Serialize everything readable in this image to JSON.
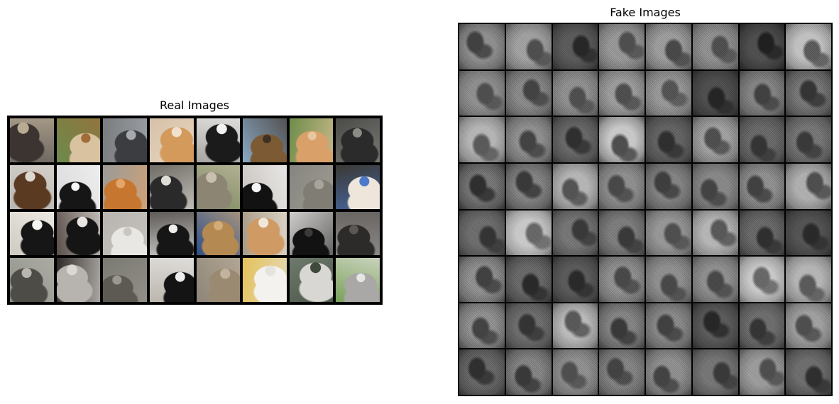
{
  "real_panel": {
    "title": "Real Images",
    "tiles": [
      {
        "bg": "#6f6a63",
        "fg": "#3b3430",
        "accent": "#b9aa93"
      },
      {
        "bg": "#6c8a4c",
        "fg": "#d8c2a0",
        "accent": "#a06c38"
      },
      {
        "bg": "#7a7d80",
        "fg": "#3b3d40",
        "accent": "#a6a9ad"
      },
      {
        "bg": "#d6c0a8",
        "fg": "#d49a5c",
        "accent": "#f0e0cc"
      },
      {
        "bg": "#a8a6a2",
        "fg": "#1b1b1b",
        "accent": "#f2f2f2"
      },
      {
        "bg": "#89a9c5",
        "fg": "#7b5a34",
        "accent": "#3d3024"
      },
      {
        "bg": "#6d8d4a",
        "fg": "#d9a06a",
        "accent": "#e8c69f"
      },
      {
        "bg": "#4a4b47",
        "fg": "#2b2b2b",
        "accent": "#8c8c86"
      },
      {
        "bg": "#b9b7b3",
        "fg": "#5b3a22",
        "accent": "#ded7cf"
      },
      {
        "bg": "#d9d9db",
        "fg": "#161616",
        "accent": "#f6f6f6"
      },
      {
        "bg": "#9a9a98",
        "fg": "#c6762e",
        "accent": "#e3a56a"
      },
      {
        "bg": "#6f6c66",
        "fg": "#2a2a2a",
        "accent": "#e0ddd6"
      },
      {
        "bg": "#7c8a5b",
        "fg": "#8d8574",
        "accent": "#c8bfad"
      },
      {
        "bg": "#c7c2bc",
        "fg": "#121212",
        "accent": "#f5f5f5"
      },
      {
        "bg": "#86857f",
        "fg": "#807e74",
        "accent": "#a7a49a"
      },
      {
        "bg": "#3b3834",
        "fg": "#eee6db",
        "accent": "#4a79c9"
      },
      {
        "bg": "#cfcac2",
        "fg": "#161616",
        "accent": "#f7f5f1"
      },
      {
        "bg": "#5a4e49",
        "fg": "#151515",
        "accent": "#e9e6e2"
      },
      {
        "bg": "#b8b5b1",
        "fg": "#e9e7e4",
        "accent": "#cac6c1"
      },
      {
        "bg": "#5d5a57",
        "fg": "#161616",
        "accent": "#f1efec"
      },
      {
        "bg": "#2e4f8a",
        "fg": "#b58a52",
        "accent": "#d2ac78"
      },
      {
        "bg": "#a89c88",
        "fg": "#d09a64",
        "accent": "#efe7dc"
      },
      {
        "bg": "#cfcdcb",
        "fg": "#121212",
        "accent": "#3a3a3a"
      },
      {
        "bg": "#8c8885",
        "fg": "#2d2b2a",
        "accent": "#5a5755"
      },
      {
        "bg": "#8f9289",
        "fg": "#4e4c46",
        "accent": "#b8b6ae"
      },
      {
        "bg": "#2f2a28",
        "fg": "#b7b3ae",
        "accent": "#dbd8d3"
      },
      {
        "bg": "#7b7a72",
        "fg": "#5c5a52",
        "accent": "#9a978e"
      },
      {
        "bg": "#bcb6ad",
        "fg": "#141414",
        "accent": "#ededed"
      },
      {
        "bg": "#8d8578",
        "fg": "#9b8a72",
        "accent": "#c1b39e"
      },
      {
        "bg": "#e4c15a",
        "fg": "#f4f2ef",
        "accent": "#e6e3de"
      },
      {
        "bg": "#6e7a6c",
        "fg": "#d8d7d4",
        "accent": "#3f4a3d"
      },
      {
        "bg": "#7aa15a",
        "fg": "#a9a8a6",
        "accent": "#e7e6e4"
      }
    ]
  },
  "fake_panel": {
    "title": "Fake Images",
    "tiles": [
      {
        "l": 0.55,
        "d": 0.25
      },
      {
        "l": 0.62,
        "d": 0.3
      },
      {
        "l": 0.35,
        "d": 0.15
      },
      {
        "l": 0.58,
        "d": 0.3
      },
      {
        "l": 0.6,
        "d": 0.28
      },
      {
        "l": 0.55,
        "d": 0.3
      },
      {
        "l": 0.3,
        "d": 0.12
      },
      {
        "l": 0.75,
        "d": 0.35
      },
      {
        "l": 0.55,
        "d": 0.3
      },
      {
        "l": 0.52,
        "d": 0.26
      },
      {
        "l": 0.55,
        "d": 0.3
      },
      {
        "l": 0.6,
        "d": 0.3
      },
      {
        "l": 0.58,
        "d": 0.32
      },
      {
        "l": 0.3,
        "d": 0.14
      },
      {
        "l": 0.5,
        "d": 0.25
      },
      {
        "l": 0.45,
        "d": 0.2
      },
      {
        "l": 0.7,
        "d": 0.35
      },
      {
        "l": 0.55,
        "d": 0.26
      },
      {
        "l": 0.4,
        "d": 0.18
      },
      {
        "l": 0.78,
        "d": 0.3
      },
      {
        "l": 0.38,
        "d": 0.18
      },
      {
        "l": 0.62,
        "d": 0.3
      },
      {
        "l": 0.4,
        "d": 0.2
      },
      {
        "l": 0.45,
        "d": 0.22
      },
      {
        "l": 0.45,
        "d": 0.18
      },
      {
        "l": 0.5,
        "d": 0.22
      },
      {
        "l": 0.7,
        "d": 0.32
      },
      {
        "l": 0.55,
        "d": 0.28
      },
      {
        "l": 0.5,
        "d": 0.24
      },
      {
        "l": 0.52,
        "d": 0.26
      },
      {
        "l": 0.55,
        "d": 0.25
      },
      {
        "l": 0.68,
        "d": 0.3
      },
      {
        "l": 0.42,
        "d": 0.2
      },
      {
        "l": 0.78,
        "d": 0.4
      },
      {
        "l": 0.45,
        "d": 0.22
      },
      {
        "l": 0.48,
        "d": 0.22
      },
      {
        "l": 0.58,
        "d": 0.3
      },
      {
        "l": 0.7,
        "d": 0.34
      },
      {
        "l": 0.4,
        "d": 0.18
      },
      {
        "l": 0.32,
        "d": 0.16
      },
      {
        "l": 0.55,
        "d": 0.25
      },
      {
        "l": 0.4,
        "d": 0.16
      },
      {
        "l": 0.35,
        "d": 0.16
      },
      {
        "l": 0.55,
        "d": 0.28
      },
      {
        "l": 0.55,
        "d": 0.28
      },
      {
        "l": 0.55,
        "d": 0.28
      },
      {
        "l": 0.78,
        "d": 0.4
      },
      {
        "l": 0.7,
        "d": 0.35
      },
      {
        "l": 0.55,
        "d": 0.26
      },
      {
        "l": 0.42,
        "d": 0.2
      },
      {
        "l": 0.72,
        "d": 0.34
      },
      {
        "l": 0.5,
        "d": 0.22
      },
      {
        "l": 0.52,
        "d": 0.25
      },
      {
        "l": 0.35,
        "d": 0.15
      },
      {
        "l": 0.42,
        "d": 0.2
      },
      {
        "l": 0.62,
        "d": 0.3
      },
      {
        "l": 0.4,
        "d": 0.18
      },
      {
        "l": 0.5,
        "d": 0.22
      },
      {
        "l": 0.55,
        "d": 0.3
      },
      {
        "l": 0.5,
        "d": 0.26
      },
      {
        "l": 0.55,
        "d": 0.26
      },
      {
        "l": 0.45,
        "d": 0.22
      },
      {
        "l": 0.6,
        "d": 0.3
      },
      {
        "l": 0.42,
        "d": 0.18
      }
    ]
  }
}
